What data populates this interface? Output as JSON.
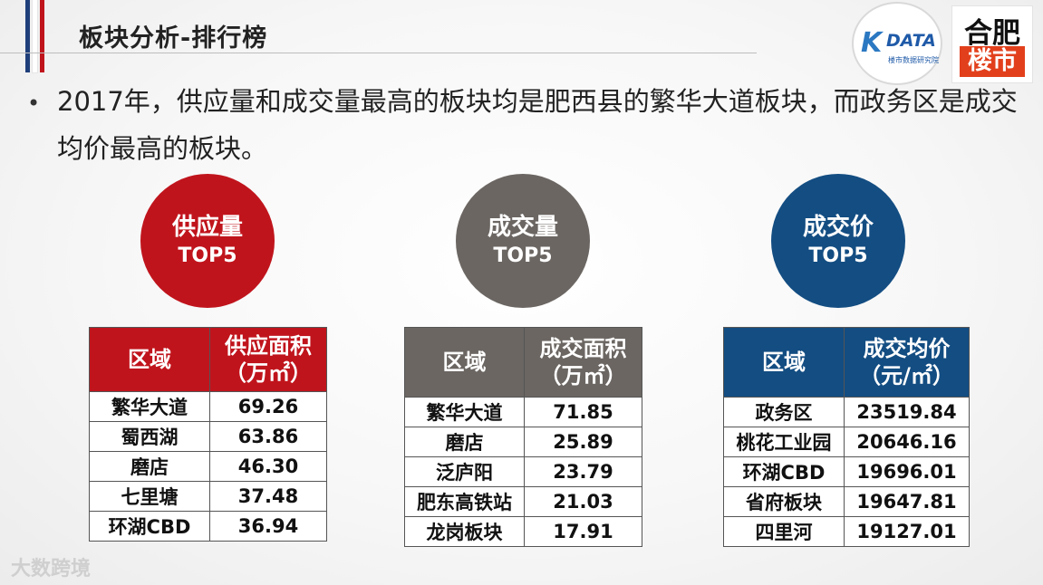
{
  "header": {
    "title": "板块分析-排行榜",
    "logo_left_k": "K",
    "logo_left_text": "DATA",
    "logo_left_sub": "楼市数据研究院",
    "logo_right_top": "合肥",
    "logo_right_bottom": "楼市"
  },
  "bullet": {
    "dot": "•",
    "text": "2017年，供应量和成交量最高的板块均是肥西县的繁华大道板块，而政务区是成交均价最高的板块。"
  },
  "circles": [
    {
      "line1": "供应量",
      "line2": "TOP5",
      "color": "#c0141c"
    },
    {
      "line1": "成交量",
      "line2": "TOP5",
      "color": "#6b6662"
    },
    {
      "line1": "成交价",
      "line2": "TOP5",
      "color": "#134d82"
    }
  ],
  "tables": {
    "supply": {
      "col1": "区域",
      "col2_line1": "供应面积",
      "col2_line2": "（万㎡）",
      "rows": [
        {
          "area": "繁华大道",
          "value": "69.26"
        },
        {
          "area": "蜀西湖",
          "value": "63.86"
        },
        {
          "area": "磨店",
          "value": "46.30"
        },
        {
          "area": "七里塘",
          "value": "37.48"
        },
        {
          "area": "环湖CBD",
          "value": "36.94"
        }
      ]
    },
    "volume": {
      "col1": "区域",
      "col2_line1": "成交面积",
      "col2_line2": "（万㎡）",
      "rows": [
        {
          "area": "繁华大道",
          "value": "71.85"
        },
        {
          "area": "磨店",
          "value": "25.89"
        },
        {
          "area": "泛庐阳",
          "value": "23.79"
        },
        {
          "area": "肥东高铁站",
          "value": "21.03"
        },
        {
          "area": "龙岗板块",
          "value": "17.91"
        }
      ]
    },
    "price": {
      "col1": "区域",
      "col2_line1": "成交均价",
      "col2_line2": "（元/㎡）",
      "rows": [
        {
          "area": "政务区",
          "value": "23519.84"
        },
        {
          "area": "桃花工业园",
          "value": "20646.16"
        },
        {
          "area": "环湖CBD",
          "value": "19696.01"
        },
        {
          "area": "省府板块",
          "value": "19647.81"
        },
        {
          "area": "四里河",
          "value": "19127.01"
        }
      ]
    }
  },
  "watermark": "大数跨境"
}
